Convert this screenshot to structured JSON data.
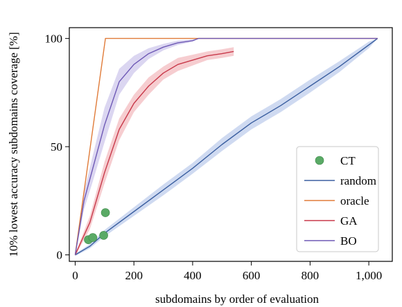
{
  "chart_data": {
    "type": "line",
    "xlabel": "subdomains by order of evaluation",
    "ylabel": "10% lowest accuracy subdomains coverage [%]",
    "xlim": [
      -20,
      1080
    ],
    "ylim": [
      -3,
      105
    ],
    "x_ticks": [
      0,
      200,
      400,
      600,
      800,
      1000
    ],
    "x_tick_labels": [
      "0",
      "200",
      "400",
      "600",
      "800",
      "1,000"
    ],
    "y_ticks": [
      0,
      50,
      100
    ],
    "y_tick_labels": [
      "0",
      "50",
      "100"
    ],
    "grid": false,
    "legend_position": "lower right",
    "series": [
      {
        "name": "random",
        "color": "#3b5fa0",
        "band_color": "#c7d3ee",
        "kind": "line_band",
        "x": [
          0,
          50,
          100,
          200,
          300,
          400,
          500,
          600,
          700,
          800,
          900,
          1000,
          1030
        ],
        "y": [
          0,
          4,
          10,
          20,
          30,
          40,
          51,
          61,
          69,
          78,
          87,
          97,
          100
        ],
        "band": [
          0.5,
          1,
          1.5,
          2,
          2.5,
          2.5,
          3,
          3,
          3,
          3,
          2.5,
          1.5,
          0
        ]
      },
      {
        "name": "oracle",
        "color": "#e07b39",
        "kind": "line",
        "x": [
          0,
          103,
          1030
        ],
        "y": [
          0,
          100,
          100
        ]
      },
      {
        "name": "GA",
        "color": "#c8394a",
        "band_color": "#f4c4c8",
        "kind": "line_band",
        "x": [
          0,
          50,
          100,
          150,
          200,
          250,
          300,
          350,
          400,
          450,
          500,
          540
        ],
        "y": [
          0,
          15,
          38,
          58,
          70,
          78,
          84,
          88,
          90,
          92,
          93,
          94
        ],
        "band": [
          0.5,
          3,
          5,
          5,
          4,
          4,
          3,
          3,
          2.5,
          2,
          2,
          2
        ]
      },
      {
        "name": "BO",
        "color": "#6e59b5",
        "band_color": "#d5cfee",
        "kind": "line_band",
        "x": [
          0,
          30,
          60,
          100,
          150,
          200,
          250,
          300,
          350,
          400,
          420,
          1030
        ],
        "y": [
          0,
          25,
          40,
          60,
          80,
          88,
          93,
          96,
          98,
          99,
          100,
          100
        ],
        "band": [
          0.5,
          4,
          6,
          8,
          6,
          4,
          2.5,
          1.5,
          1,
          0.5,
          0,
          0
        ]
      },
      {
        "name": "CT",
        "color": "#5aaa66",
        "kind": "scatter",
        "x": [
          45,
          60,
          97,
          103
        ],
        "y": [
          7,
          8,
          9,
          19.5
        ]
      }
    ]
  }
}
